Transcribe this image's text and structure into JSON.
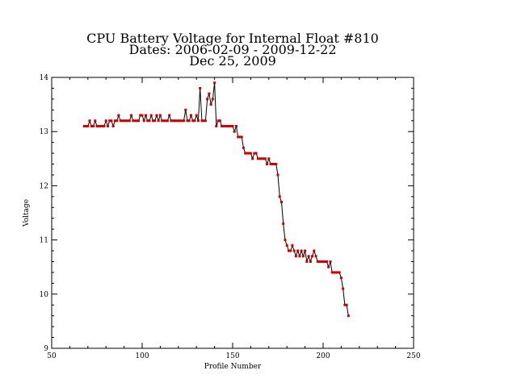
{
  "chart_data": {
    "type": "line",
    "title_lines": [
      "CPU Battery Voltage for Internal Float #810",
      "Dates:  2006-02-09 -  2009-12-22",
      "Dec 25, 2009"
    ],
    "xlabel": "Profile Number",
    "ylabel": "Voltage",
    "xlim": [
      50,
      250
    ],
    "ylim": [
      9,
      14
    ],
    "xticks": [
      50,
      100,
      150,
      200,
      250
    ],
    "yticks": [
      9,
      10,
      11,
      12,
      13,
      14
    ],
    "xtick_labels": [
      "50",
      "100",
      "150",
      "200",
      "250"
    ],
    "ytick_labels": [
      "9",
      "10",
      "11",
      "12",
      "13",
      "14"
    ],
    "grid": false,
    "line_color": "#000000",
    "marker_color": "#cc0000",
    "x": [
      68,
      69,
      70,
      71,
      72,
      73,
      74,
      75,
      76,
      77,
      78,
      79,
      80,
      81,
      82,
      83,
      84,
      85,
      86,
      87,
      88,
      89,
      90,
      91,
      92,
      93,
      94,
      95,
      96,
      97,
      98,
      99,
      100,
      101,
      102,
      103,
      104,
      105,
      106,
      107,
      108,
      109,
      110,
      111,
      112,
      113,
      114,
      115,
      116,
      117,
      118,
      119,
      120,
      121,
      122,
      123,
      124,
      125,
      126,
      127,
      128,
      129,
      130,
      131,
      132,
      133,
      134,
      135,
      136,
      137,
      138,
      139,
      140,
      141,
      142,
      143,
      144,
      145,
      146,
      147,
      148,
      149,
      150,
      151,
      152,
      153,
      154,
      155,
      156,
      157,
      158,
      159,
      160,
      161,
      162,
      163,
      164,
      165,
      166,
      167,
      168,
      169,
      170,
      171,
      172,
      173,
      174,
      175,
      176,
      177,
      178,
      179,
      180,
      181,
      182,
      183,
      184,
      185,
      186,
      187,
      188,
      189,
      190,
      191,
      192,
      193,
      194,
      195,
      196,
      197,
      198,
      199,
      200,
      201,
      202,
      203,
      204,
      205,
      206,
      207,
      208,
      209,
      210,
      211,
      212,
      213,
      214
    ],
    "y": [
      13.1,
      13.1,
      13.1,
      13.2,
      13.1,
      13.1,
      13.2,
      13.1,
      13.1,
      13.1,
      13.1,
      13.1,
      13.2,
      13.1,
      13.2,
      13.2,
      13.1,
      13.2,
      13.2,
      13.3,
      13.2,
      13.2,
      13.2,
      13.2,
      13.2,
      13.2,
      13.3,
      13.2,
      13.2,
      13.2,
      13.2,
      13.3,
      13.3,
      13.2,
      13.3,
      13.2,
      13.2,
      13.3,
      13.2,
      13.2,
      13.3,
      13.2,
      13.3,
      13.2,
      13.2,
      13.2,
      13.2,
      13.3,
      13.2,
      13.2,
      13.2,
      13.2,
      13.2,
      13.2,
      13.2,
      13.2,
      13.4,
      13.2,
      13.2,
      13.3,
      13.2,
      13.2,
      13.3,
      13.2,
      13.8,
      13.2,
      13.2,
      13.2,
      13.6,
      13.7,
      13.5,
      13.6,
      13.9,
      13.1,
      13.2,
      13.2,
      13.1,
      13.1,
      13.1,
      13.1,
      13.1,
      13.1,
      13.1,
      13.0,
      13.1,
      12.9,
      12.9,
      12.9,
      12.7,
      12.6,
      12.6,
      12.6,
      12.6,
      12.5,
      12.6,
      12.6,
      12.5,
      12.5,
      12.5,
      12.5,
      12.5,
      12.4,
      12.5,
      12.4,
      12.4,
      12.4,
      12.4,
      12.2,
      11.8,
      11.7,
      11.3,
      11.0,
      10.9,
      10.8,
      10.8,
      10.9,
      10.8,
      10.7,
      10.8,
      10.7,
      10.8,
      10.7,
      10.8,
      10.6,
      10.7,
      10.6,
      10.7,
      10.8,
      10.7,
      10.6,
      10.6,
      10.6,
      10.6,
      10.6,
      10.6,
      10.5,
      10.6,
      10.4,
      10.4,
      10.4,
      10.4,
      10.4,
      10.3,
      10.1,
      9.8,
      9.8,
      9.6
    ]
  }
}
